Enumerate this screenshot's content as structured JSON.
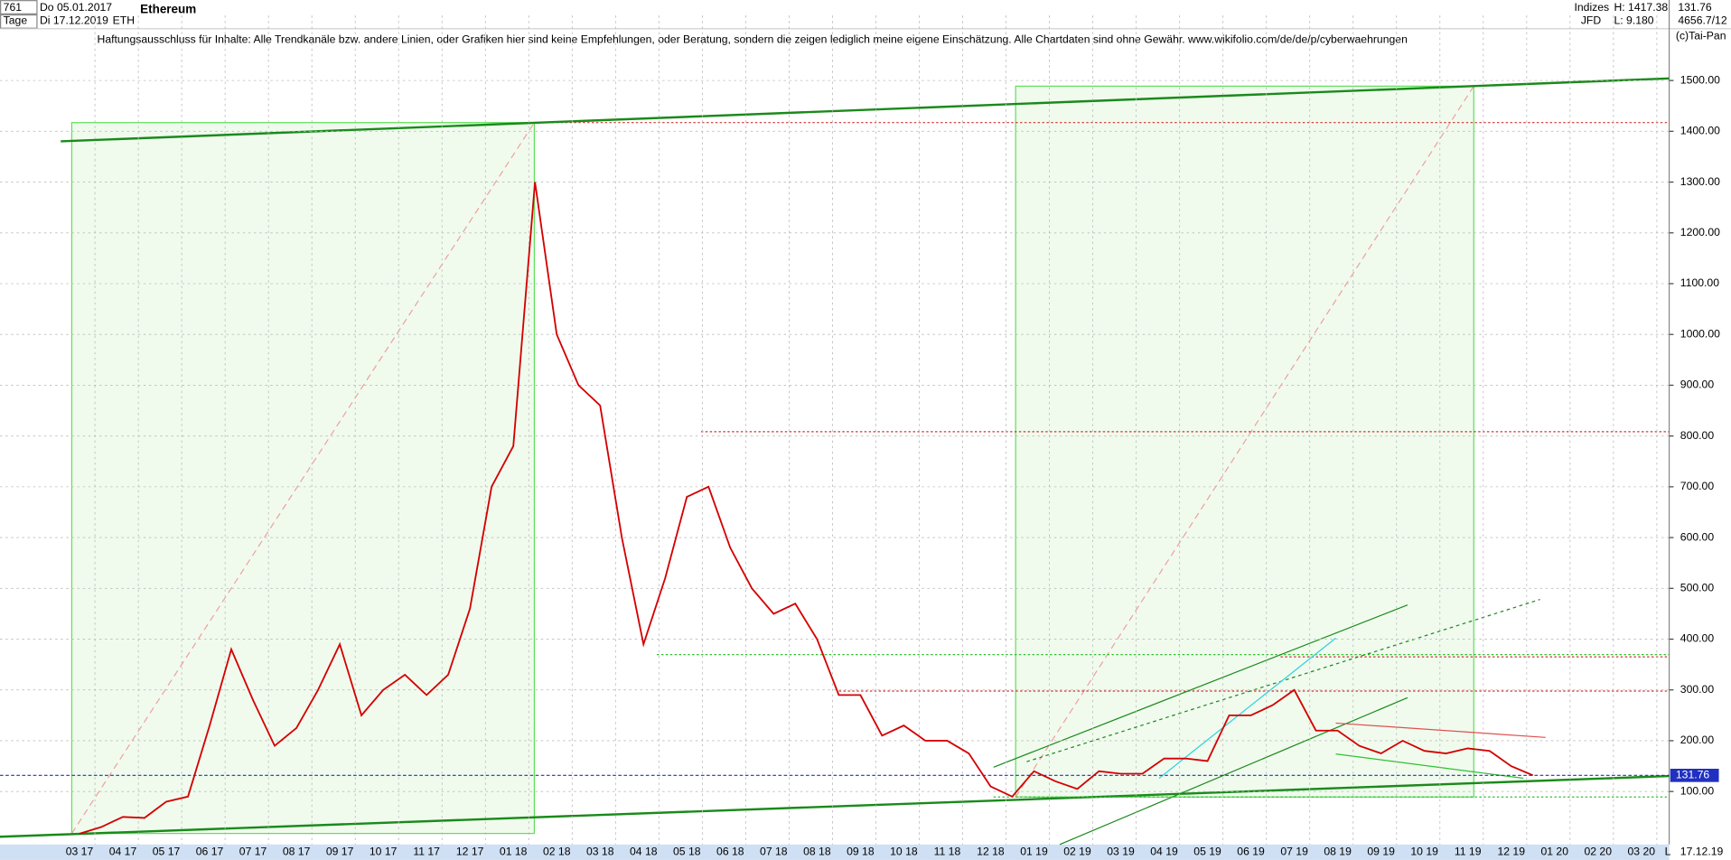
{
  "header": {
    "bars": "761",
    "start_date": "Do 05.01.2017",
    "period": "Tage",
    "end_date": "Di 17.12.2019",
    "symbol": "ETH",
    "market": "Indizes",
    "source": "JFD",
    "high": "H: 1417.38",
    "low": "L: 9.180",
    "ident": "4656.7/12",
    "copyright": "(c)Tai-Pan",
    "axis_end": "L",
    "end_label": "17.12.19"
  },
  "chart_data": {
    "type": "line",
    "title": "Ethereum",
    "subtitle": "Haftungsausschluss für Inhalte: Alle Trendkanäle bzw. andere Linien, oder Grafiken hier sind keine Empfehlungen, oder Beratung, sondern die zeigen lediglich meine eigene Einschätzung. Alle Chartdaten sind ohne Gewähr.  www.wikifolio.com/de/de/p/cyberwaehrungen",
    "categories": [
      "03 17",
      null,
      "04 17",
      null,
      "05 17",
      null,
      "06 17",
      null,
      "07 17",
      null,
      "08 17",
      null,
      "09 17",
      null,
      "10 17",
      null,
      "11 17",
      null,
      "12 17",
      null,
      "01 18",
      null,
      "02 18",
      null,
      "03 18",
      null,
      "04 18",
      null,
      "05 18",
      null,
      "06 18",
      null,
      "07 18",
      null,
      "08 18",
      null,
      "09 18",
      null,
      "10 18",
      null,
      "11 18",
      null,
      "12 18",
      null,
      "01 19",
      null,
      "02 19",
      null,
      "03 19",
      null,
      "04 19",
      null,
      "05 19",
      null,
      "06 19",
      null,
      "07 19",
      null,
      "08 19",
      null,
      "09 19",
      null,
      "10 19",
      null,
      "11 19",
      null,
      "12 19",
      null,
      "01 20",
      null,
      "02 20",
      null,
      "03 20",
      null
    ],
    "series": [
      {
        "name": "ETH",
        "color": "#d40000",
        "values": [
          17,
          30,
          50,
          48,
          80,
          90,
          230,
          380,
          280,
          190,
          225,
          300,
          390,
          250,
          300,
          330,
          290,
          330,
          460,
          700,
          780,
          1300,
          1000,
          900,
          860,
          600,
          390,
          520,
          680,
          700,
          580,
          500,
          450,
          470,
          400,
          290,
          290,
          210,
          230,
          200,
          200,
          175,
          110,
          90,
          140,
          120,
          105,
          140,
          135,
          135,
          165,
          165,
          160,
          250,
          250,
          270,
          300,
          220,
          220,
          190,
          175,
          200,
          180,
          175,
          185,
          180,
          150,
          132,
          null,
          null,
          null,
          null,
          null,
          null
        ]
      }
    ],
    "last_price": {
      "value": 131.76,
      "label": "131.76"
    },
    "ylim": [
      0,
      1628
    ],
    "yticks": [
      {
        "value": 100,
        "label": "100.00"
      },
      {
        "value": 200,
        "label": "200.00"
      },
      {
        "value": 300,
        "label": "300.00"
      },
      {
        "value": 400,
        "label": "400.00"
      },
      {
        "value": 500,
        "label": "500.00"
      },
      {
        "value": 600,
        "label": "600.00"
      },
      {
        "value": 700,
        "label": "700.00"
      },
      {
        "value": 800,
        "label": "800.00"
      },
      {
        "value": 900,
        "label": "900.00"
      },
      {
        "value": 1000,
        "label": "1000.00"
      },
      {
        "value": 1100,
        "label": "1100.00"
      },
      {
        "value": 1200,
        "label": "1200.00"
      },
      {
        "value": 1300,
        "label": "1300.00"
      },
      {
        "value": 1400,
        "label": "1400.00"
      },
      {
        "value": 1500,
        "label": "1500.00"
      }
    ],
    "grid": true
  }
}
